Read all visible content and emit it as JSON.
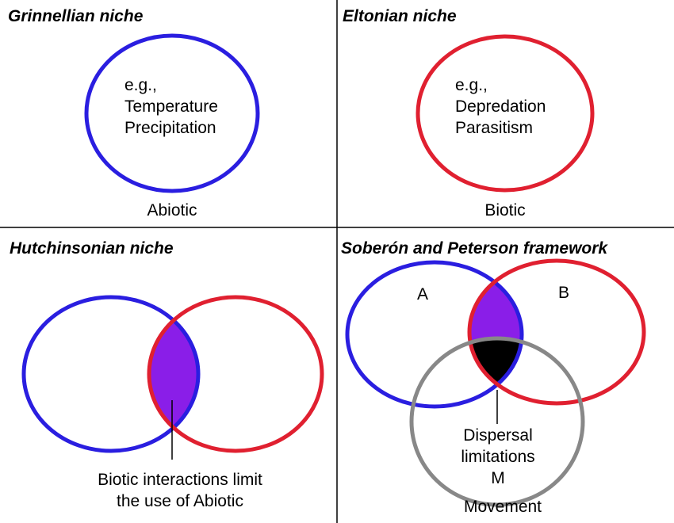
{
  "colors": {
    "abiotic_circle": "#2a1ee0",
    "biotic_circle": "#e02030",
    "movement_circle": "#888888",
    "overlap_fill": "#8a1ee8",
    "core_fill": "#000000",
    "divider": "#000000"
  },
  "panels": {
    "grinnellian": {
      "title": "Grinnellian niche",
      "examples": [
        "e.g.,",
        "Temperature",
        "Precipitation"
      ],
      "caption": "Abiotic"
    },
    "eltonian": {
      "title": "Eltonian niche",
      "examples": [
        "e.g.,",
        "Depredation",
        "Parasitism"
      ],
      "caption": "Biotic"
    },
    "hutchinsonian": {
      "title": "Hutchinsonian niche",
      "caption_lines": [
        "Biotic interactions limit",
        "the use of Abiotic"
      ]
    },
    "soberon_peterson": {
      "title": "Soberón and Peterson framework",
      "label_a": "A",
      "label_b": "B",
      "caption_lines": [
        "Dispersal",
        "limitations",
        "M",
        "Movement"
      ]
    }
  }
}
